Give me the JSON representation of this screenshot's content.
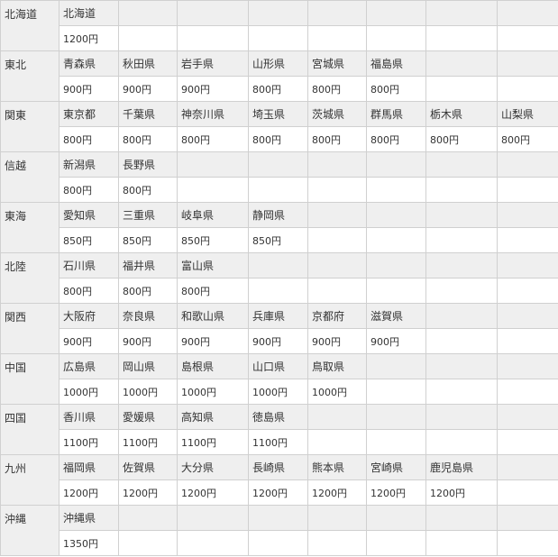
{
  "table": {
    "rows": [
      {
        "region": "北海道",
        "prefectures": [
          "北海道"
        ],
        "prices": [
          "1200円"
        ]
      },
      {
        "region": "東北",
        "prefectures": [
          "青森県",
          "秋田県",
          "岩手県",
          "山形県",
          "宮城県",
          "福島県"
        ],
        "prices": [
          "900円",
          "900円",
          "900円",
          "800円",
          "800円",
          "800円"
        ]
      },
      {
        "region": "関東",
        "prefectures": [
          "東京都",
          "千葉県",
          "神奈川県",
          "埼玉県",
          "茨城県",
          "群馬県",
          "栃木県",
          "山梨県"
        ],
        "prices": [
          "800円",
          "800円",
          "800円",
          "800円",
          "800円",
          "800円",
          "800円",
          "800円"
        ]
      },
      {
        "region": "信越",
        "prefectures": [
          "新潟県",
          "長野県"
        ],
        "prices": [
          "800円",
          "800円"
        ]
      },
      {
        "region": "東海",
        "prefectures": [
          "愛知県",
          "三重県",
          "岐阜県",
          "静岡県"
        ],
        "prices": [
          "850円",
          "850円",
          "850円",
          "850円"
        ]
      },
      {
        "region": "北陸",
        "prefectures": [
          "石川県",
          "福井県",
          "富山県"
        ],
        "prices": [
          "800円",
          "800円",
          "800円"
        ]
      },
      {
        "region": "関西",
        "prefectures": [
          "大阪府",
          "奈良県",
          "和歌山県",
          "兵庫県",
          "京都府",
          "滋賀県"
        ],
        "prices": [
          "900円",
          "900円",
          "900円",
          "900円",
          "900円",
          "900円"
        ]
      },
      {
        "region": "中国",
        "prefectures": [
          "広島県",
          "岡山県",
          "島根県",
          "山口県",
          "鳥取県"
        ],
        "prices": [
          "1000円",
          "1000円",
          "1000円",
          "1000円",
          "1000円"
        ]
      },
      {
        "region": "四国",
        "prefectures": [
          "香川県",
          "愛媛県",
          "高知県",
          "徳島県"
        ],
        "prices": [
          "1100円",
          "1100円",
          "1100円",
          "1100円"
        ]
      },
      {
        "region": "九州",
        "prefectures": [
          "福岡県",
          "佐賀県",
          "大分県",
          "長崎県",
          "熊本県",
          "宮崎県",
          "鹿児島県"
        ],
        "prices": [
          "1200円",
          "1200円",
          "1200円",
          "1200円",
          "1200円",
          "1200円",
          "1200円"
        ]
      },
      {
        "region": "沖縄",
        "prefectures": [
          "沖縄県"
        ],
        "prices": [
          "1350円"
        ]
      }
    ]
  }
}
